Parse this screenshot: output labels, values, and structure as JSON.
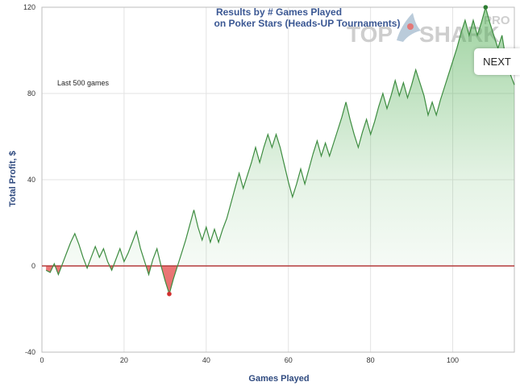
{
  "chart_data": {
    "type": "line",
    "title": "Results by # Games Played",
    "subtitle": "on Poker Stars (Heads-UP Tournaments)",
    "xlabel": "Games Played",
    "ylabel": "Total Profit, $",
    "annotation": "Last 500 games",
    "xlim": [
      0,
      115
    ],
    "ylim": [
      -40,
      120
    ],
    "xticks": [
      0,
      20,
      40,
      60,
      80,
      100
    ],
    "yticks": [
      -40,
      0,
      40,
      80,
      120
    ],
    "grid": true,
    "series": [
      {
        "x": [
          1,
          2,
          3,
          4,
          5,
          6,
          7,
          8,
          9,
          10,
          11,
          12,
          13,
          14,
          15,
          16,
          17,
          18,
          19,
          20,
          21,
          22,
          23,
          24,
          25,
          26,
          27,
          28,
          29,
          30,
          31,
          32,
          33,
          34,
          35,
          36,
          37,
          38,
          39,
          40,
          41,
          42,
          43,
          44,
          45,
          46,
          47,
          48,
          49,
          50,
          51,
          52,
          53,
          54,
          55,
          56,
          57,
          58,
          59,
          60,
          61,
          62,
          63,
          64,
          65,
          66,
          67,
          68,
          69,
          70,
          71,
          72,
          73,
          74,
          75,
          76,
          77,
          78,
          79,
          80,
          81,
          82,
          83,
          84,
          85,
          86,
          87,
          88,
          89,
          90,
          91,
          92,
          93,
          94,
          95,
          96,
          97,
          98,
          99,
          100,
          101,
          102,
          103,
          104,
          105,
          106,
          107,
          108,
          109,
          110,
          111,
          112,
          113,
          114,
          115
        ],
        "y": [
          -2,
          -3,
          1,
          -4,
          1,
          6,
          11,
          15,
          10,
          4,
          -1,
          4,
          9,
          4,
          8,
          2,
          -2,
          3,
          8,
          2,
          6,
          11,
          16,
          8,
          2,
          -4,
          3,
          8,
          0,
          -7,
          -13,
          -6,
          0,
          6,
          12,
          19,
          26,
          18,
          12,
          18,
          11,
          17,
          11,
          17,
          22,
          29,
          36,
          43,
          36,
          42,
          48,
          55,
          48,
          55,
          61,
          55,
          61,
          55,
          47,
          39,
          32,
          38,
          45,
          38,
          45,
          52,
          58,
          51,
          57,
          51,
          57,
          63,
          69,
          76,
          68,
          61,
          55,
          62,
          68,
          61,
          67,
          74,
          80,
          73,
          79,
          86,
          79,
          85,
          78,
          84,
          91,
          85,
          79,
          70,
          76,
          70,
          77,
          83,
          89,
          95,
          101,
          108,
          114,
          107,
          114,
          107,
          113,
          120,
          113,
          107,
          101,
          107,
          95,
          89,
          84
        ]
      }
    ],
    "colors": {
      "line": "#3d8c40",
      "positive_fill": "#4fae52",
      "negative_fill": "#e03a3a",
      "zero_line": "#b33a3a",
      "max_marker": "#2e7d32",
      "min_marker": "#d32f2f",
      "title": "#3a5793",
      "axis_title": "#2f4a7f"
    },
    "markers": {
      "max": {
        "x": 108,
        "y": 120
      },
      "min": {
        "x": 31,
        "y": -13
      }
    }
  },
  "logo": {
    "text_left": "TOP",
    "text_right": "SHARK",
    "suffix": "PRO"
  },
  "nav": {
    "next_label": "NEXT"
  }
}
